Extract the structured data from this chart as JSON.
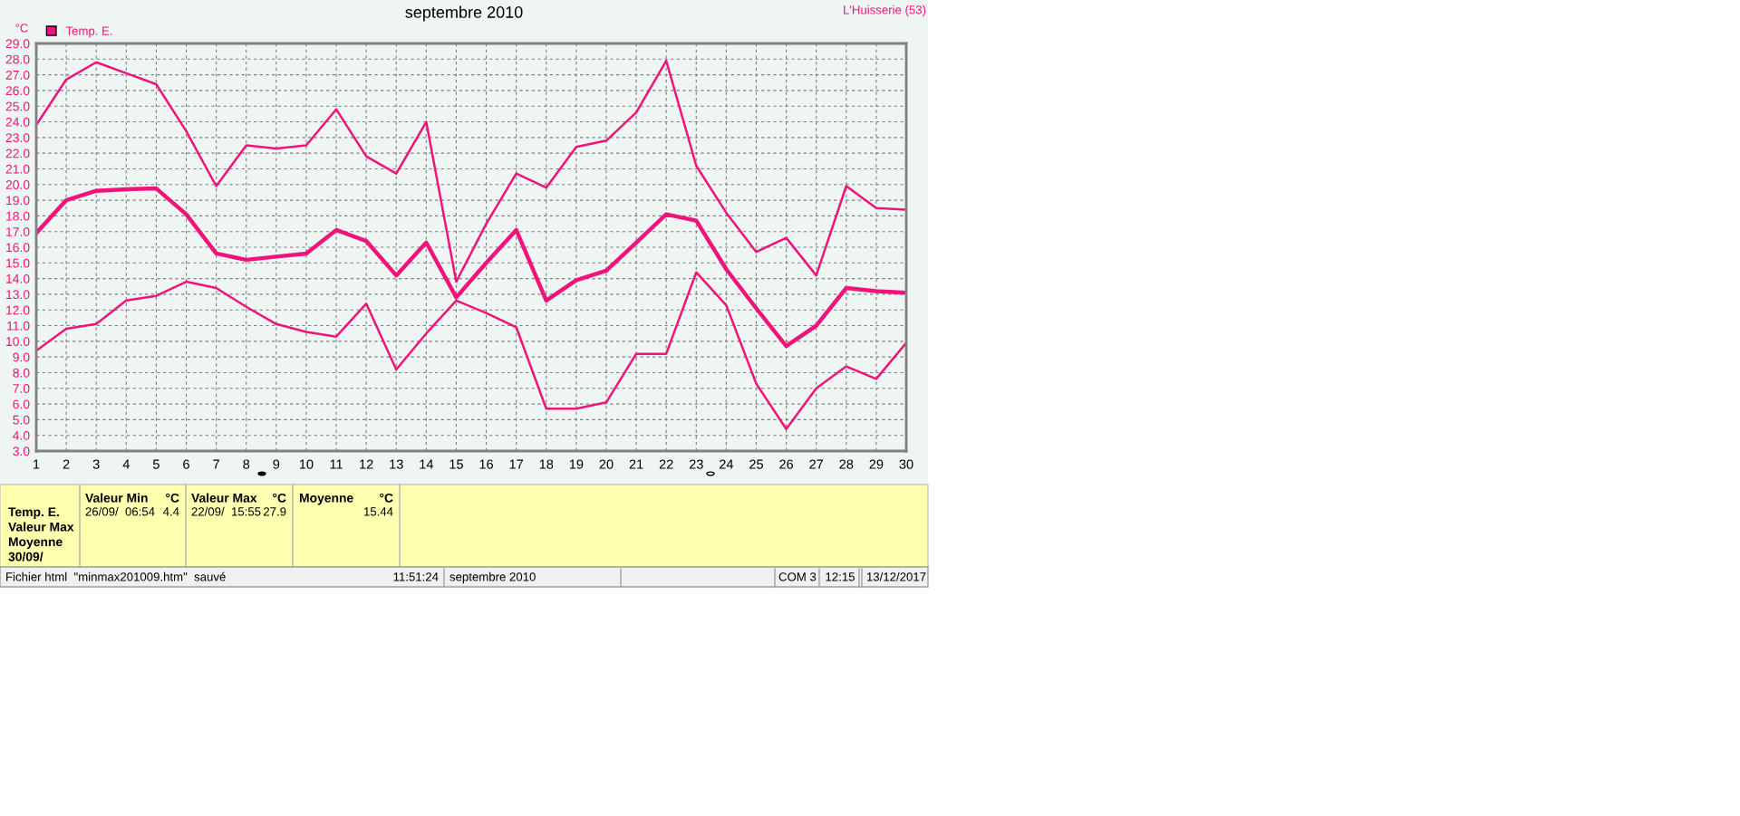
{
  "chart_data": {
    "type": "line",
    "title": "septembre 2010",
    "ylabel": "°C",
    "x": [
      1,
      2,
      3,
      4,
      5,
      6,
      7,
      8,
      9,
      10,
      11,
      12,
      13,
      14,
      15,
      16,
      17,
      18,
      19,
      20,
      21,
      22,
      23,
      24,
      25,
      26,
      27,
      28,
      29,
      30
    ],
    "series": [
      {
        "color": "#f0147a",
        "values": [
          23.8,
          26.7,
          27.8,
          27.1,
          26.4,
          23.4,
          19.9,
          22.5,
          22.3,
          22.5,
          24.8,
          21.8,
          20.7,
          24.0,
          13.8,
          17.5,
          20.7,
          19.8,
          22.4,
          22.8,
          24.6,
          27.9,
          21.2,
          18.2,
          15.7,
          16.6,
          14.2,
          19.9,
          18.5,
          18.4
        ]
      },
      {
        "name": "Temp. E.",
        "color": "#f0147a",
        "values": [
          16.9,
          19.0,
          19.6,
          19.7,
          19.75,
          18.1,
          15.6,
          15.2,
          15.4,
          15.6,
          17.1,
          16.4,
          14.2,
          16.3,
          12.8,
          15.0,
          17.1,
          12.6,
          13.9,
          14.5,
          16.3,
          18.1,
          17.7,
          14.6,
          12.1,
          9.7,
          11.0,
          13.4,
          13.2,
          13.1
        ]
      },
      {
        "color": "#f0147a",
        "values": [
          9.4,
          10.8,
          11.1,
          12.6,
          12.9,
          13.8,
          13.4,
          12.2,
          11.1,
          10.6,
          10.3,
          12.4,
          8.2,
          10.5,
          12.6,
          11.8,
          10.9,
          5.7,
          5.7,
          6.1,
          9.2,
          9.2,
          14.4,
          12.3,
          7.3,
          4.4,
          7.0,
          8.4,
          7.6,
          9.9
        ]
      }
    ],
    "xlim": [
      1,
      30
    ],
    "xticks": [
      1,
      2,
      3,
      4,
      5,
      6,
      7,
      8,
      9,
      10,
      11,
      12,
      13,
      14,
      15,
      16,
      17,
      18,
      19,
      20,
      21,
      22,
      23,
      24,
      25,
      26,
      27,
      28,
      29,
      30
    ],
    "ylim": [
      3.0,
      29.0
    ],
    "yticks": [
      {
        "value": 3,
        "label": "3.0"
      },
      {
        "value": 4,
        "label": "4.0"
      },
      {
        "value": 5,
        "label": "5.0"
      },
      {
        "value": 6,
        "label": "6.0"
      },
      {
        "value": 7,
        "label": "7.0"
      },
      {
        "value": 8,
        "label": "8.0"
      },
      {
        "value": 9,
        "label": "9.0"
      },
      {
        "value": 10,
        "label": "10.0"
      },
      {
        "value": 11,
        "label": "11.0"
      },
      {
        "value": 12,
        "label": "12.0"
      },
      {
        "value": 13,
        "label": "13.0"
      },
      {
        "value": 14,
        "label": "14.0"
      },
      {
        "value": 15,
        "label": "15.0"
      },
      {
        "value": 16,
        "label": "16.0"
      },
      {
        "value": 17,
        "label": "17.0"
      },
      {
        "value": 18,
        "label": "18.0"
      },
      {
        "value": 19,
        "label": "19.0"
      },
      {
        "value": 20,
        "label": "20.0"
      },
      {
        "value": 21,
        "label": "21.0"
      },
      {
        "value": 22,
        "label": "22.0"
      },
      {
        "value": 23,
        "label": "23.0"
      },
      {
        "value": 24,
        "label": "24.0"
      },
      {
        "value": 25,
        "label": "25.0"
      },
      {
        "value": 26,
        "label": "26.0"
      },
      {
        "value": 27,
        "label": "27.0"
      },
      {
        "value": 28,
        "label": "28.0"
      },
      {
        "value": 29,
        "label": "29.0"
      }
    ],
    "grid": true,
    "legend": "top left",
    "marker": "none",
    "line_style": "solid",
    "annotations": [
      "L'Huisserie (53)",
      "Temp. E.\nValeur Max\nMoyenne\n30/09/",
      "Valeur Min",
      "°C",
      "26/09/  06:54",
      "4.4",
      "Valeur Max",
      "°C",
      "22/09/  15:55",
      "27.9",
      "Moyenne",
      "°C",
      "15.44",
      "Fichier html  \"minmax201009.htm\"  sauvé",
      "11:51:24",
      "septembre 2010",
      "COM 3",
      "12:15",
      "13/12/2017"
    ]
  }
}
